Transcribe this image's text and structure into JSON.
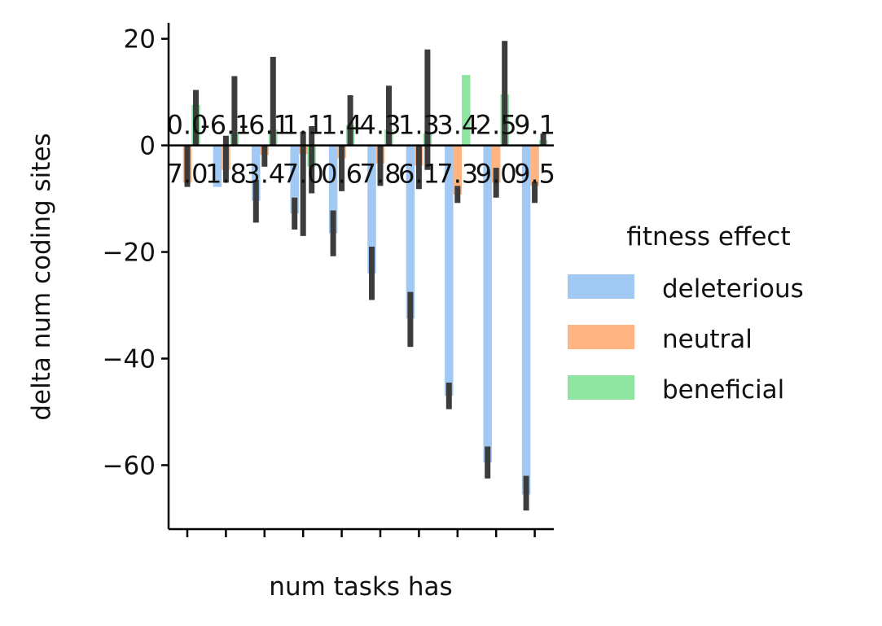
{
  "chart_data": {
    "type": "bar",
    "title": "",
    "xlabel": "num tasks has",
    "ylabel": "delta num coding sites",
    "ylim": [
      -72,
      23
    ],
    "yticks": [
      20,
      0,
      -20,
      -40,
      -60
    ],
    "ytick_labels": [
      "20",
      "0",
      "−20",
      "−40",
      "−60"
    ],
    "num_groups": 10,
    "categories": [
      "",
      "",
      "",
      "",
      "",
      "",
      "",
      "",
      "",
      ""
    ],
    "zero_line": true,
    "legend": {
      "title": "fitness effect",
      "placement": "right",
      "entries": [
        "deleterious",
        "neutral",
        "beneficial"
      ]
    },
    "colors": {
      "deleterious": "#a1c9f4",
      "neutral": "#ffb482",
      "beneficial": "#8de5a1",
      "errorbar": "#3c3c3c",
      "axis": "#000000"
    },
    "series": [
      {
        "name": "deleterious",
        "values": [
          0,
          -7.8,
          -10.4,
          -12.8,
          -16.5,
          -24.0,
          -32.5,
          -47.0,
          -59.5,
          -65.5
        ],
        "error_low": [
          0,
          -7.8,
          -14.5,
          -15.8,
          -20.8,
          -29.0,
          -37.8,
          -49.5,
          -62.5,
          -68.5
        ],
        "error_high": [
          0,
          -7.8,
          -6.5,
          -9.8,
          -12.2,
          -19.0,
          -27.5,
          -44.5,
          -56.5,
          -62.0
        ]
      },
      {
        "name": "neutral",
        "values": [
          -7.0,
          -4.6,
          -1.8,
          -1.6,
          -2.4,
          -3.4,
          -3.8,
          -9.2,
          -7.0,
          -7.6
        ],
        "error_low": [
          -7.8,
          -7.0,
          -4.0,
          -17.0,
          -8.6,
          -7.6,
          -8.2,
          -10.8,
          -9.8,
          -10.8
        ],
        "error_high": [
          0,
          1.8,
          0,
          2.6,
          0,
          0,
          0,
          -7.6,
          -4.2,
          -6.8
        ]
      },
      {
        "name": "beneficial",
        "values": [
          7.6,
          2.4,
          3.0,
          -4.0,
          3.8,
          3.0,
          2.2,
          13.2,
          9.6,
          1.0
        ],
        "error_low": [
          0,
          0,
          0,
          -9.0,
          0,
          0,
          -4.6,
          0,
          0,
          0
        ],
        "error_high": [
          10.4,
          13.0,
          16.6,
          3.6,
          9.4,
          11.2,
          18.0,
          0,
          19.6,
          2.2
        ]
      }
    ],
    "annotations_top": [
      {
        "text": "0.0",
        "group": 0
      },
      {
        "text": "-6.1",
        "group": 1
      },
      {
        "text": "-6.1",
        "group": 2
      },
      {
        "text": "1.1",
        "group": 3
      },
      {
        "text": "1.4",
        "group": 4
      },
      {
        "text": "4.3",
        "group": 5
      },
      {
        "text": "1.3",
        "group": 6
      },
      {
        "text": "3.4",
        "group": 7
      },
      {
        "text": "2.5",
        "group": 8
      },
      {
        "text": "9.1",
        "group": 9
      }
    ],
    "annotations_bottom": [
      {
        "text": "7.0",
        "group": 0
      },
      {
        "text": "1.8",
        "group": 1
      },
      {
        "text": "3.4",
        "group": 2
      },
      {
        "text": "7.0",
        "group": 3
      },
      {
        "text": "0.6",
        "group": 4
      },
      {
        "text": "7.8",
        "group": 5
      },
      {
        "text": "6.1",
        "group": 6
      },
      {
        "text": "7.3",
        "group": 7
      },
      {
        "text": "9.0",
        "group": 8
      },
      {
        "text": "9.5",
        "group": 9
      }
    ]
  }
}
